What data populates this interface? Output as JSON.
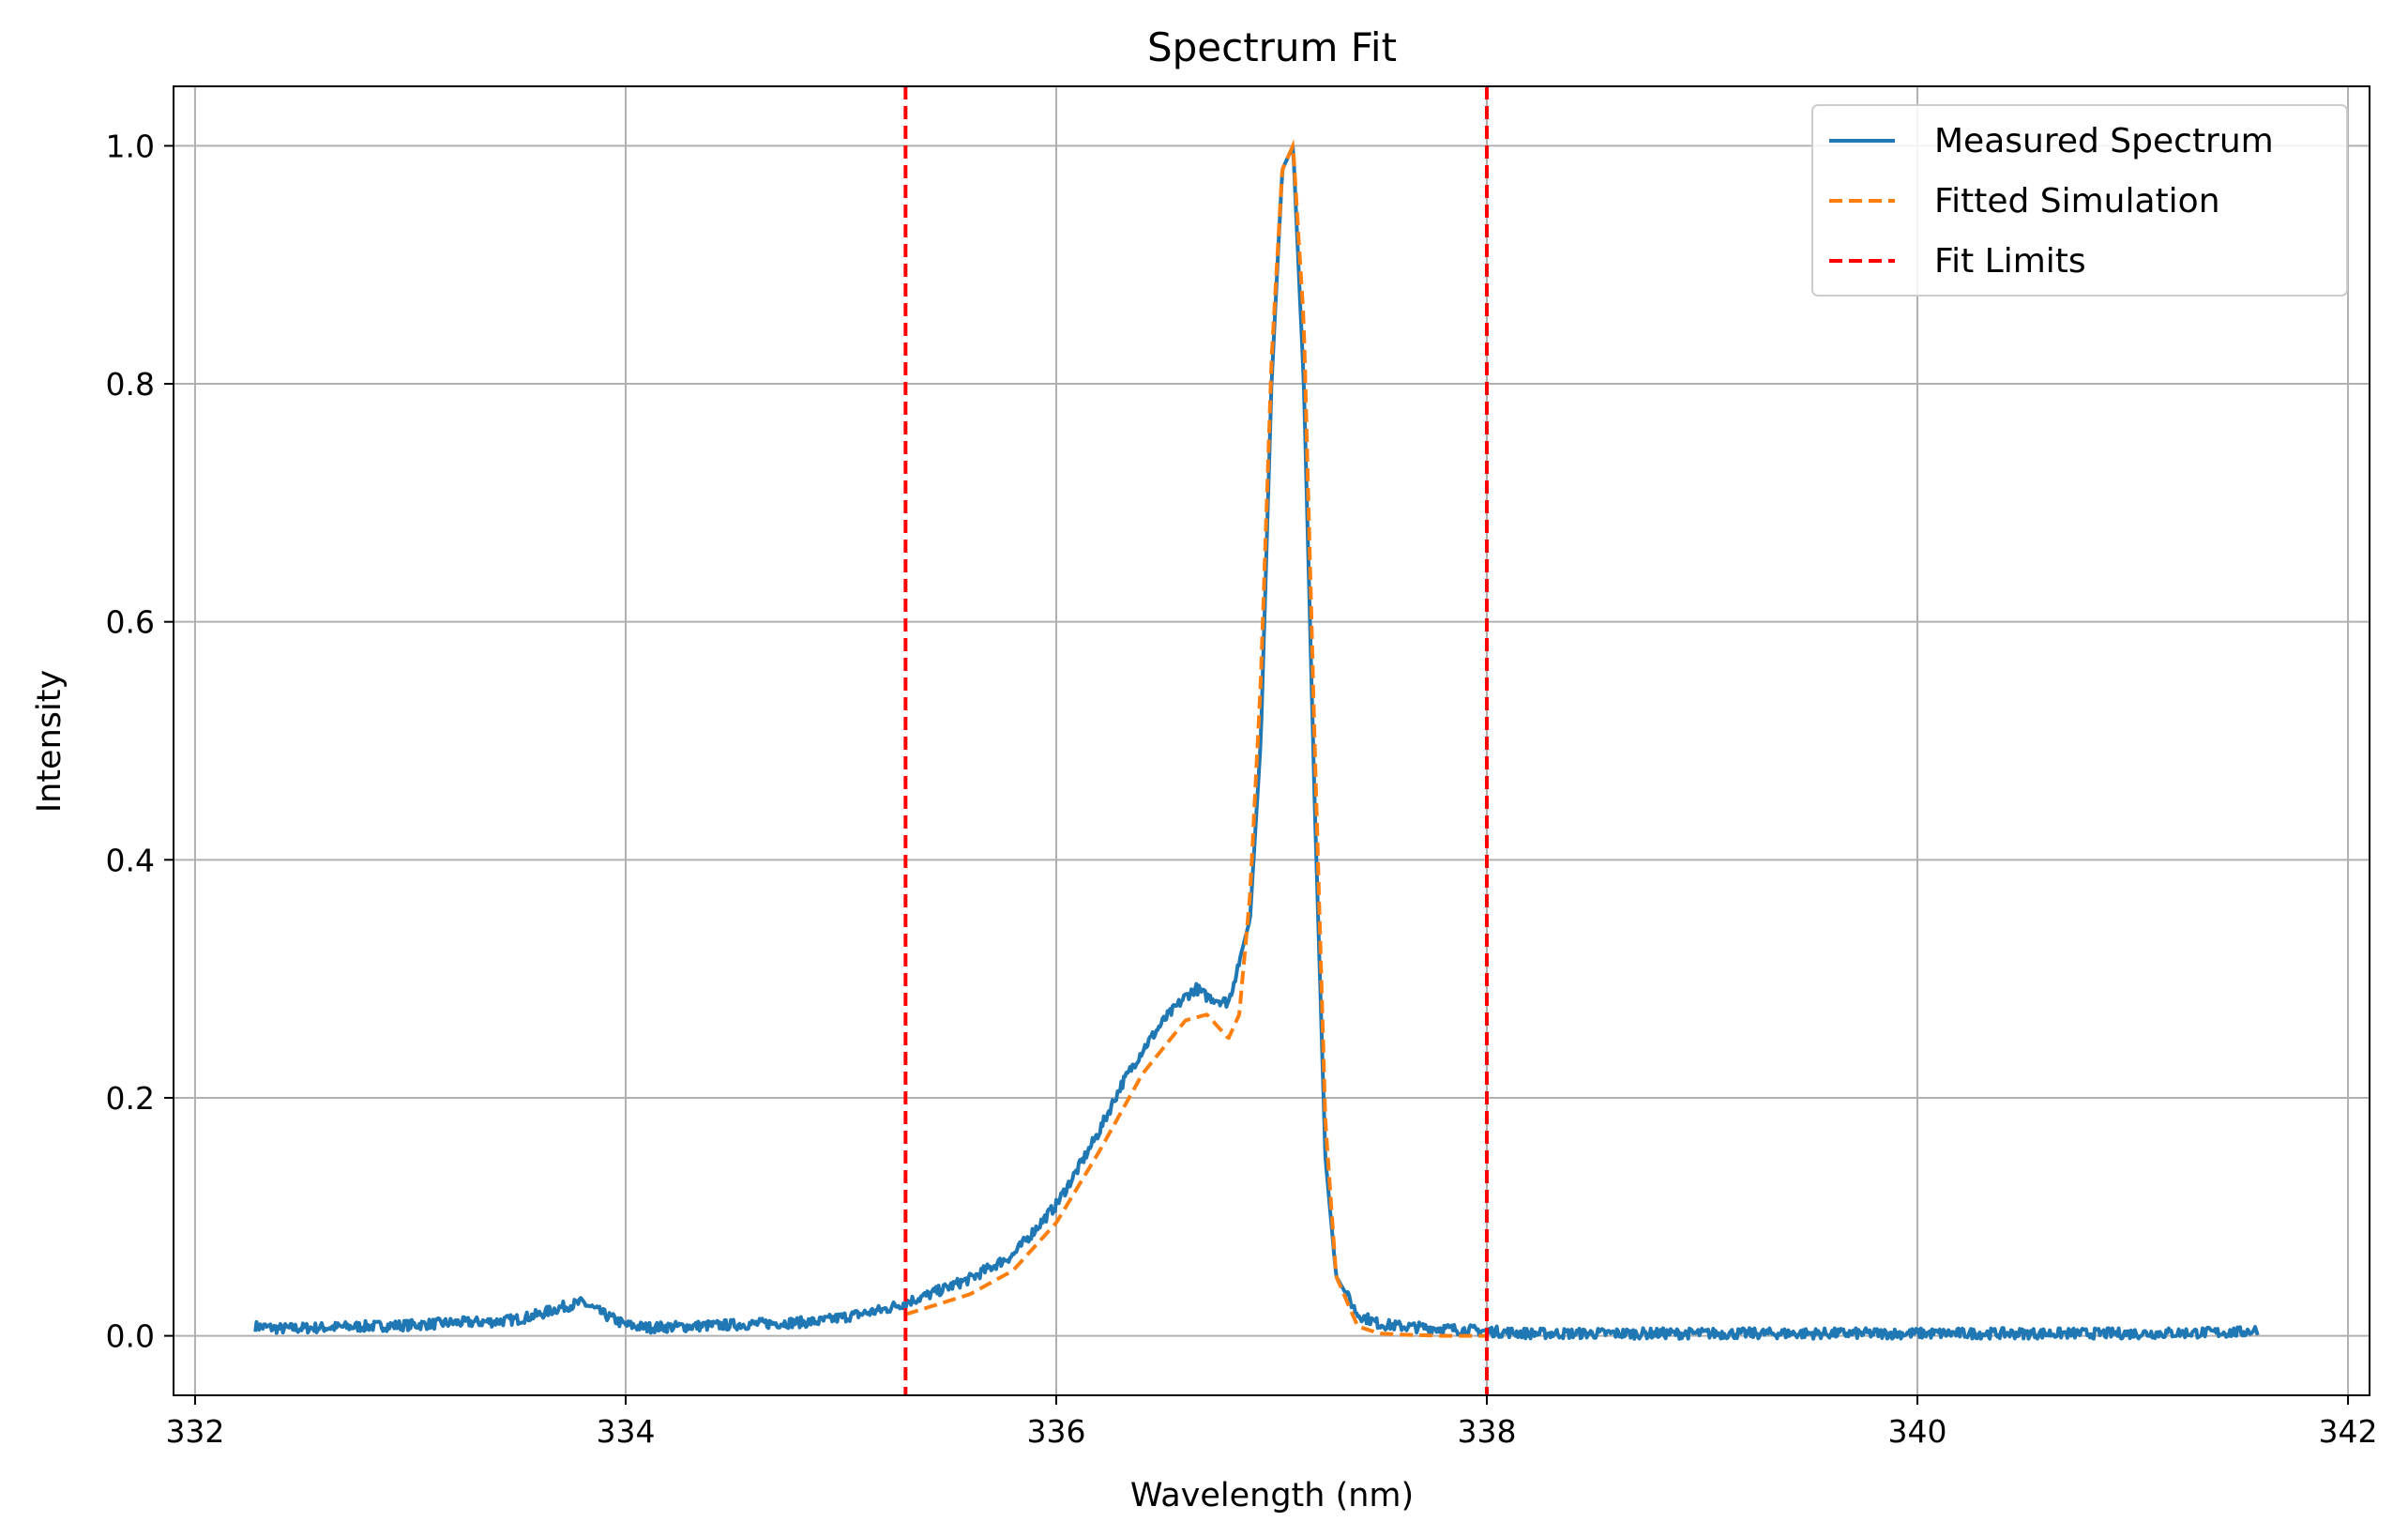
{
  "chart_data": {
    "type": "line",
    "title": "Spectrum Fit",
    "xlabel": "Wavelength (nm)",
    "ylabel": "Intensity",
    "xlim": [
      331.9,
      342.1
    ],
    "ylim": [
      -0.05,
      1.05
    ],
    "xticks": [
      332,
      334,
      336,
      338,
      340,
      342
    ],
    "yticks": [
      0.0,
      0.2,
      0.4,
      0.6,
      0.8,
      1.0
    ],
    "xtick_labels": [
      "332",
      "334",
      "336",
      "338",
      "340",
      "342"
    ],
    "ytick_labels": [
      "0.0",
      "0.2",
      "0.4",
      "0.6",
      "0.8",
      "1.0"
    ],
    "grid": true,
    "legend_position": "top-right",
    "series": [
      {
        "name": "Measured Spectrum",
        "color": "#1f77b4",
        "style": "solid",
        "x": [
          332.28,
          332.4,
          332.6,
          332.8,
          333.0,
          333.2,
          333.4,
          333.5,
          333.6,
          333.7,
          333.8,
          333.9,
          334.0,
          334.1,
          334.3,
          334.6,
          334.9,
          335.2,
          335.3,
          335.4,
          335.6,
          335.8,
          336.0,
          336.1,
          336.2,
          336.3,
          336.4,
          336.5,
          336.6,
          336.65,
          336.7,
          336.8,
          336.9,
          336.95,
          337.0,
          337.05,
          337.1,
          337.15,
          337.2,
          337.25,
          337.3,
          337.4,
          337.5,
          337.6,
          337.8,
          338.0,
          338.2,
          338.5,
          339.0,
          339.5,
          340.0,
          340.5,
          341.0,
          341.5,
          341.58
        ],
        "y": [
          0.008,
          0.006,
          0.007,
          0.008,
          0.009,
          0.011,
          0.012,
          0.014,
          0.018,
          0.024,
          0.028,
          0.018,
          0.009,
          0.007,
          0.008,
          0.01,
          0.012,
          0.022,
          0.028,
          0.034,
          0.048,
          0.068,
          0.11,
          0.14,
          0.172,
          0.21,
          0.24,
          0.265,
          0.285,
          0.292,
          0.285,
          0.28,
          0.35,
          0.5,
          0.8,
          0.98,
          1.0,
          0.8,
          0.45,
          0.15,
          0.05,
          0.018,
          0.01,
          0.008,
          0.006,
          0.004,
          0.002,
          0.002,
          0.002,
          0.002,
          0.002,
          0.002,
          0.002,
          0.003,
          0.005
        ]
      },
      {
        "name": "Fitted Simulation",
        "color": "#ff7f0e",
        "style": "dashed",
        "x": [
          335.3,
          335.6,
          335.8,
          336.0,
          336.2,
          336.4,
          336.6,
          336.7,
          336.8,
          336.85,
          336.9,
          336.95,
          337.0,
          337.05,
          337.1,
          337.15,
          337.2,
          337.25,
          337.3,
          337.4,
          337.5,
          337.6,
          337.8,
          338.0
        ],
        "y": [
          0.018,
          0.035,
          0.055,
          0.095,
          0.155,
          0.22,
          0.265,
          0.27,
          0.25,
          0.27,
          0.37,
          0.55,
          0.82,
          0.98,
          1.0,
          0.85,
          0.5,
          0.18,
          0.05,
          0.008,
          0.002,
          0.001,
          0.0,
          0.0
        ]
      },
      {
        "name": "Fit Limits",
        "color": "#ff0000",
        "style": "dashed",
        "vlines": [
          335.3,
          338.0
        ]
      }
    ]
  }
}
